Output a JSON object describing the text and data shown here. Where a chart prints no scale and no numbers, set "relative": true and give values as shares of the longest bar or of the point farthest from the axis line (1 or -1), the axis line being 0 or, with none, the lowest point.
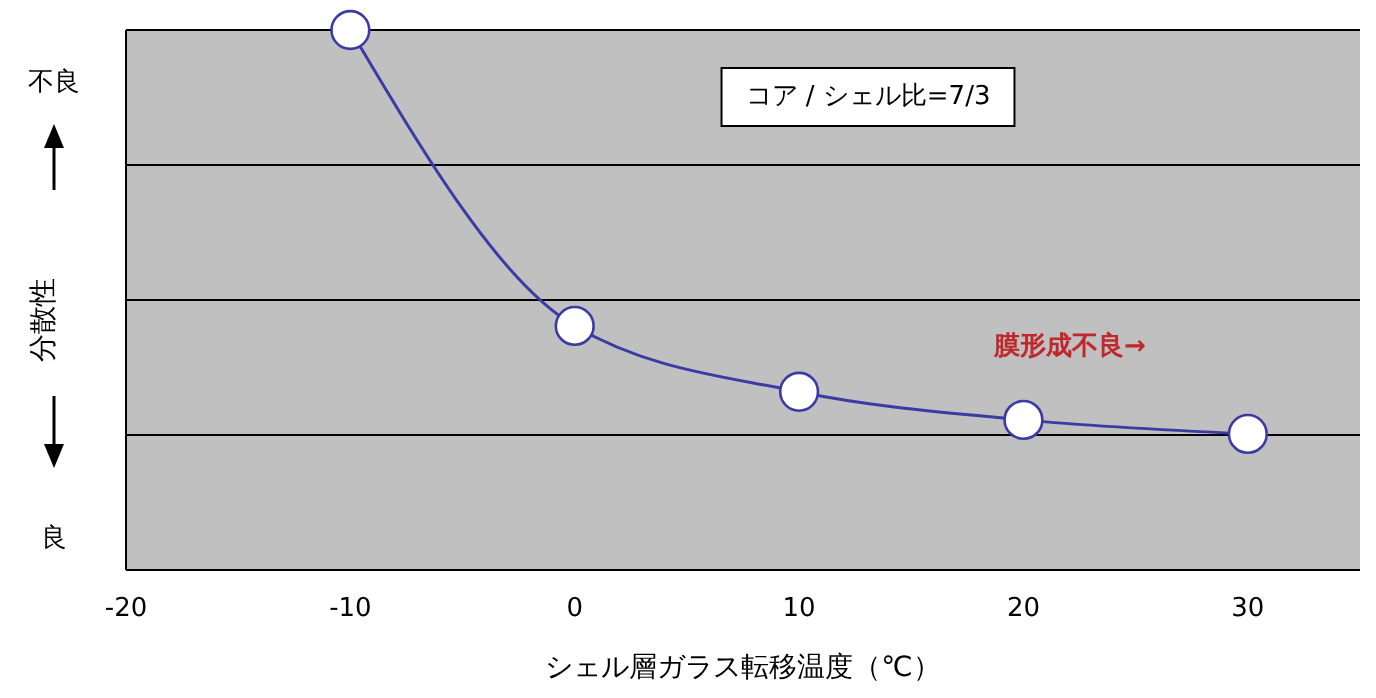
{
  "chart_data": {
    "type": "line",
    "relative": true,
    "xlabel": "シェル層ガラス転移温度（℃）",
    "ylabel": "分散性",
    "x": [
      -10,
      0,
      10,
      20,
      30
    ],
    "series": [
      {
        "color": "#3b3ba6",
        "values": [
          1,
          0.452,
          0.33,
          0.278,
          0.252
        ]
      }
    ],
    "xlim": [
      -20,
      35
    ],
    "xticks": [
      -20,
      -10,
      0,
      10,
      20,
      30
    ],
    "grid": "y",
    "marker": "circle",
    "line_style": "solid",
    "annotations": [
      "不良",
      "良",
      "コア / シェル比=7/3",
      "膜形成不良→"
    ]
  }
}
